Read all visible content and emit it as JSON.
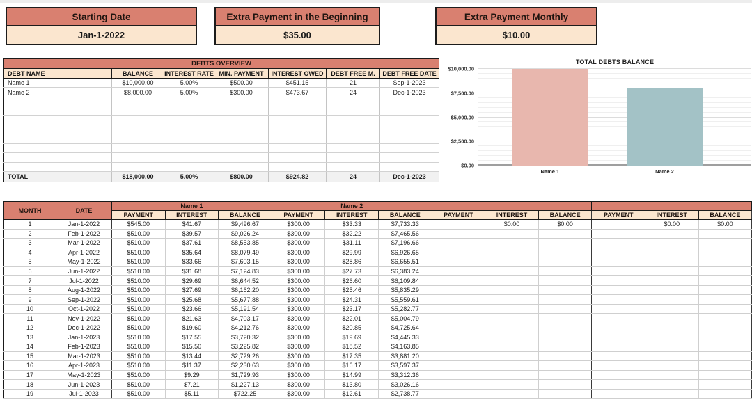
{
  "top_controls": {
    "starting_date": {
      "label": "Starting Date",
      "value": "Jan-1-2022"
    },
    "extra_payment_beginning": {
      "label": "Extra Payment in the Beginning",
      "value": "$35.00"
    },
    "extra_payment_monthly": {
      "label": "Extra Payment Monthly",
      "value": "$10.00"
    }
  },
  "debts_overview": {
    "title": "DEBTS OVERVIEW",
    "columns": [
      "DEBT NAME",
      "BALANCE",
      "INTEREST RATE",
      "MIN. PAYMENT",
      "INTEREST OWED",
      "DEBT FREE M.",
      "DEBT FREE DATE"
    ],
    "rows": [
      [
        "Name 1",
        "$10,000.00",
        "5.00%",
        "$500.00",
        "$451.15",
        "21",
        "Sep-1-2023"
      ],
      [
        "Name 2",
        "$8,000.00",
        "5.00%",
        "$300.00",
        "$473.67",
        "24",
        "Dec-1-2023"
      ],
      [
        "",
        "",
        "",
        "",
        "",
        "",
        ""
      ],
      [
        "",
        "",
        "",
        "",
        "",
        "",
        ""
      ],
      [
        "",
        "",
        "",
        "",
        "",
        "",
        ""
      ],
      [
        "",
        "",
        "",
        "",
        "",
        "",
        ""
      ],
      [
        "",
        "",
        "",
        "",
        "",
        "",
        ""
      ],
      [
        "",
        "",
        "",
        "",
        "",
        "",
        ""
      ],
      [
        "",
        "",
        "",
        "",
        "",
        "",
        ""
      ],
      [
        "",
        "",
        "",
        "",
        "",
        "",
        ""
      ]
    ],
    "total_row": [
      "TOTAL",
      "$18,000.00",
      "5.00%",
      "$800.00",
      "$924.82",
      "24",
      "Dec-1-2023"
    ]
  },
  "chart_data": {
    "type": "bar",
    "title": "TOTAL DEBTS BALANCE",
    "categories": [
      "Name 1",
      "Name 2"
    ],
    "values": [
      10000,
      8000
    ],
    "ylim": [
      0,
      10000
    ],
    "yticks": [
      0,
      2500,
      5000,
      7500,
      10000
    ],
    "ytick_labels": [
      "$0.00",
      "$2,500.00",
      "$5,000.00",
      "$7,500.00",
      "$10,000.00"
    ],
    "minor_tick_step": 500,
    "bar_colors": [
      "#e8b7ae",
      "#a3c2c6"
    ],
    "grid": true,
    "legend": false
  },
  "schedule": {
    "month_label": "MONTH",
    "date_label": "DATE",
    "group_headers": [
      "Name 1",
      "Name 2",
      "",
      ""
    ],
    "subcolumns": [
      "PAYMENT",
      "INTEREST",
      "BALANCE"
    ],
    "rows": [
      {
        "month": "1",
        "date": "Jan-1-2022",
        "cells": [
          "$545.00",
          "$41.67",
          "$9,496.67",
          "$300.00",
          "$33.33",
          "$7,733.33",
          "",
          "$0.00",
          "$0.00",
          "",
          "$0.00",
          "$0.00"
        ]
      },
      {
        "month": "2",
        "date": "Feb-1-2022",
        "cells": [
          "$510.00",
          "$39.57",
          "$9,026.24",
          "$300.00",
          "$32.22",
          "$7,465.56",
          "",
          "",
          "",
          "",
          "",
          ""
        ]
      },
      {
        "month": "3",
        "date": "Mar-1-2022",
        "cells": [
          "$510.00",
          "$37.61",
          "$8,553.85",
          "$300.00",
          "$31.11",
          "$7,196.66",
          "",
          "",
          "",
          "",
          "",
          ""
        ]
      },
      {
        "month": "4",
        "date": "Apr-1-2022",
        "cells": [
          "$510.00",
          "$35.64",
          "$8,079.49",
          "$300.00",
          "$29.99",
          "$6,926.65",
          "",
          "",
          "",
          "",
          "",
          ""
        ]
      },
      {
        "month": "5",
        "date": "May-1-2022",
        "cells": [
          "$510.00",
          "$33.66",
          "$7,603.15",
          "$300.00",
          "$28.86",
          "$6,655.51",
          "",
          "",
          "",
          "",
          "",
          ""
        ]
      },
      {
        "month": "6",
        "date": "Jun-1-2022",
        "cells": [
          "$510.00",
          "$31.68",
          "$7,124.83",
          "$300.00",
          "$27.73",
          "$6,383.24",
          "",
          "",
          "",
          "",
          "",
          ""
        ]
      },
      {
        "month": "7",
        "date": "Jul-1-2022",
        "cells": [
          "$510.00",
          "$29.69",
          "$6,644.52",
          "$300.00",
          "$26.60",
          "$6,109.84",
          "",
          "",
          "",
          "",
          "",
          ""
        ]
      },
      {
        "month": "8",
        "date": "Aug-1-2022",
        "cells": [
          "$510.00",
          "$27.69",
          "$6,162.20",
          "$300.00",
          "$25.46",
          "$5,835.29",
          "",
          "",
          "",
          "",
          "",
          ""
        ]
      },
      {
        "month": "9",
        "date": "Sep-1-2022",
        "cells": [
          "$510.00",
          "$25.68",
          "$5,677.88",
          "$300.00",
          "$24.31",
          "$5,559.61",
          "",
          "",
          "",
          "",
          "",
          ""
        ]
      },
      {
        "month": "10",
        "date": "Oct-1-2022",
        "cells": [
          "$510.00",
          "$23.66",
          "$5,191.54",
          "$300.00",
          "$23.17",
          "$5,282.77",
          "",
          "",
          "",
          "",
          "",
          ""
        ]
      },
      {
        "month": "11",
        "date": "Nov-1-2022",
        "cells": [
          "$510.00",
          "$21.63",
          "$4,703.17",
          "$300.00",
          "$22.01",
          "$5,004.79",
          "",
          "",
          "",
          "",
          "",
          ""
        ]
      },
      {
        "month": "12",
        "date": "Dec-1-2022",
        "cells": [
          "$510.00",
          "$19.60",
          "$4,212.76",
          "$300.00",
          "$20.85",
          "$4,725.64",
          "",
          "",
          "",
          "",
          "",
          ""
        ]
      },
      {
        "month": "13",
        "date": "Jan-1-2023",
        "cells": [
          "$510.00",
          "$17.55",
          "$3,720.32",
          "$300.00",
          "$19.69",
          "$4,445.33",
          "",
          "",
          "",
          "",
          "",
          ""
        ]
      },
      {
        "month": "14",
        "date": "Feb-1-2023",
        "cells": [
          "$510.00",
          "$15.50",
          "$3,225.82",
          "$300.00",
          "$18.52",
          "$4,163.85",
          "",
          "",
          "",
          "",
          "",
          ""
        ]
      },
      {
        "month": "15",
        "date": "Mar-1-2023",
        "cells": [
          "$510.00",
          "$13.44",
          "$2,729.26",
          "$300.00",
          "$17.35",
          "$3,881.20",
          "",
          "",
          "",
          "",
          "",
          ""
        ]
      },
      {
        "month": "16",
        "date": "Apr-1-2023",
        "cells": [
          "$510.00",
          "$11.37",
          "$2,230.63",
          "$300.00",
          "$16.17",
          "$3,597.37",
          "",
          "",
          "",
          "",
          "",
          ""
        ]
      },
      {
        "month": "17",
        "date": "May-1-2023",
        "cells": [
          "$510.00",
          "$9.29",
          "$1,729.93",
          "$300.00",
          "$14.99",
          "$3,312.36",
          "",
          "",
          "",
          "",
          "",
          ""
        ]
      },
      {
        "month": "18",
        "date": "Jun-1-2023",
        "cells": [
          "$510.00",
          "$7.21",
          "$1,227.13",
          "$300.00",
          "$13.80",
          "$3,026.16",
          "",
          "",
          "",
          "",
          "",
          ""
        ]
      },
      {
        "month": "19",
        "date": "Jul-1-2023",
        "cells": [
          "$510.00",
          "$5.11",
          "$722.25",
          "$300.00",
          "$12.61",
          "$2,738.77",
          "",
          "",
          "",
          "",
          "",
          ""
        ]
      }
    ]
  },
  "colors": {
    "header_salmon": "#d98070",
    "header_cream": "#fbe6cf",
    "bar_pink": "#e8b7ae",
    "bar_blue": "#a3c2c6"
  }
}
